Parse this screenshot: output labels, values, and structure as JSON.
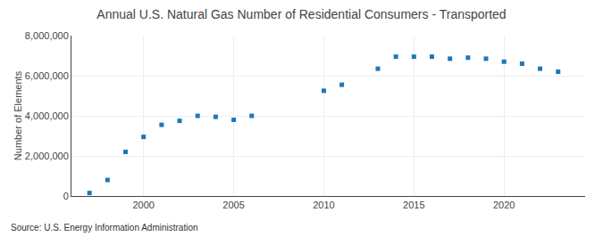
{
  "chart_data": {
    "type": "scatter",
    "title": "Annual U.S. Natural Gas Number of Residential Consumers - Transported",
    "ylabel": "Number of Elements",
    "source": "Source: U.S. Energy Information Administration",
    "marker": "square",
    "x": [
      1997,
      1998,
      1999,
      2000,
      2001,
      2002,
      2003,
      2004,
      2005,
      2006,
      2010,
      2011,
      2013,
      2014,
      2015,
      2016,
      2017,
      2018,
      2019,
      2020,
      2021,
      2022,
      2023
    ],
    "values": [
      150000,
      800000,
      2200000,
      2950000,
      3550000,
      3750000,
      4000000,
      3950000,
      3800000,
      4000000,
      5250000,
      5550000,
      6350000,
      6950000,
      6950000,
      6950000,
      6850000,
      6900000,
      6850000,
      6700000,
      6600000,
      6350000,
      6200000
    ],
    "xlim": [
      1996,
      2024.5
    ],
    "xticks": [
      2000,
      2005,
      2010,
      2015,
      2020
    ],
    "ylim": [
      0,
      8000000
    ],
    "yticks": [
      0,
      {
        "value": 2000000,
        "label": "2,000,000"
      },
      {
        "value": 4000000,
        "label": "4,000,000"
      },
      {
        "value": 6000000,
        "label": "6,000,000"
      },
      {
        "value": 8000000,
        "label": "8,000,000"
      }
    ],
    "grid": true
  }
}
